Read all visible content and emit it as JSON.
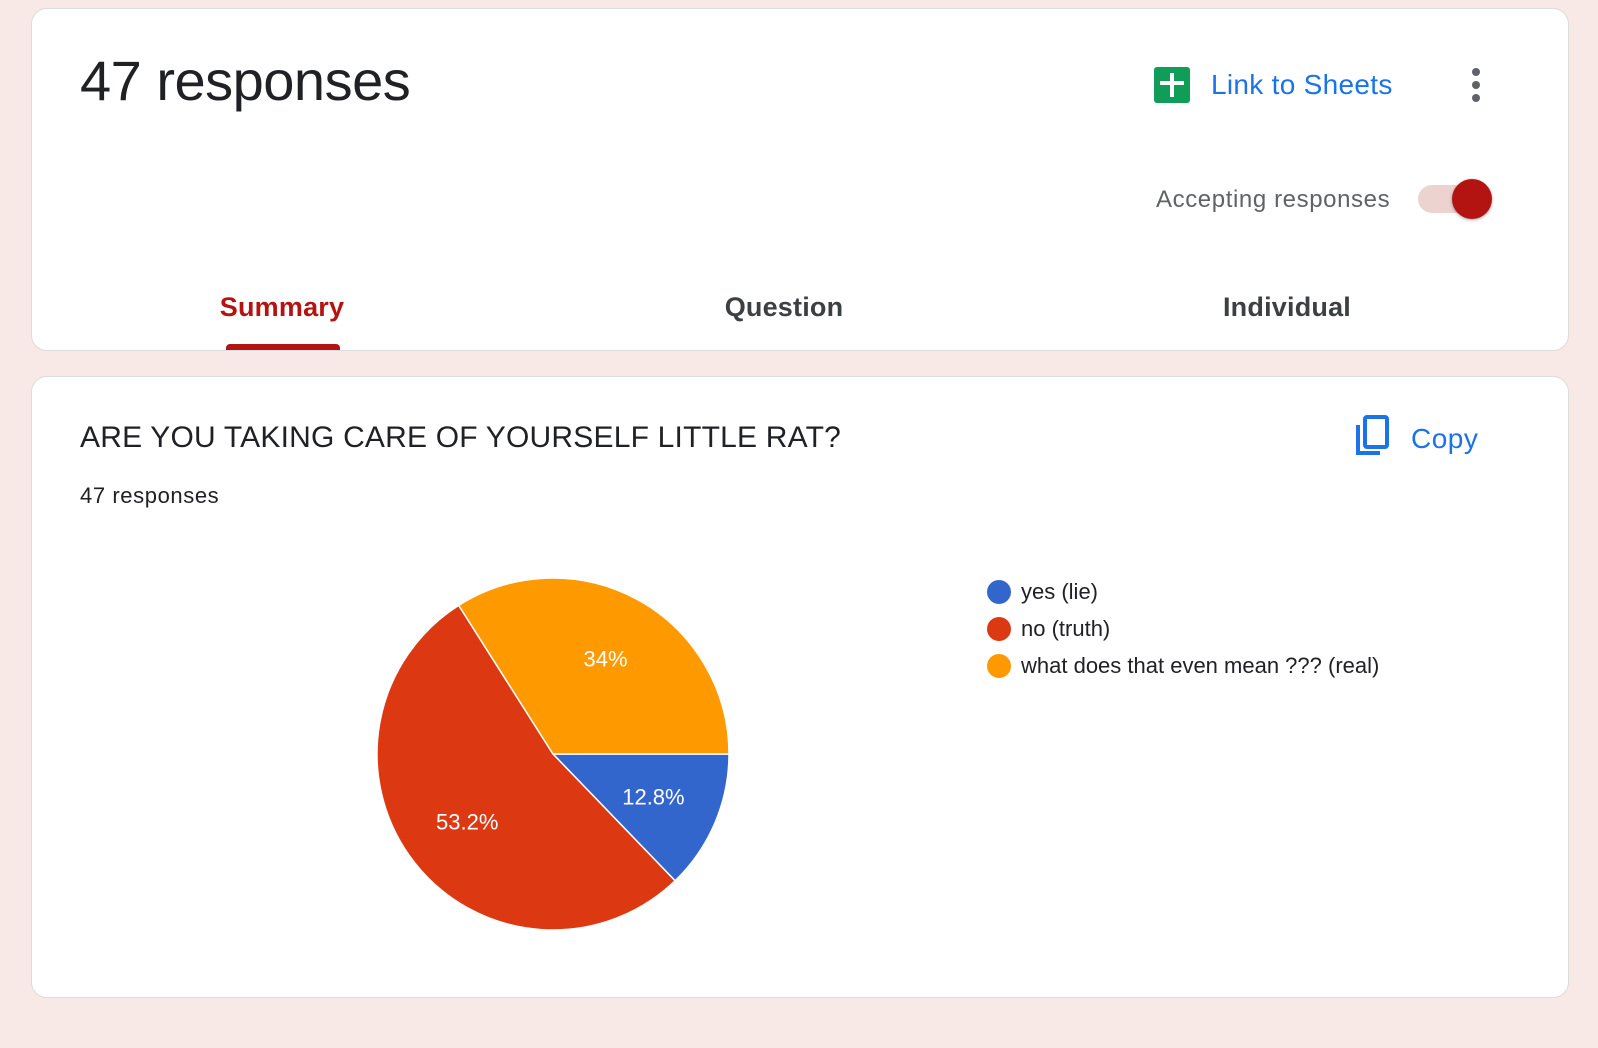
{
  "header": {
    "title": "47 responses",
    "link_to_sheets_label": "Link to Sheets",
    "more_icon": "more-vert-icon",
    "sheets_icon": "sheets-icon",
    "accepting_label": "Accepting responses",
    "accepting": true
  },
  "tabs": [
    {
      "label": "Summary",
      "active": true
    },
    {
      "label": "Question",
      "active": false
    },
    {
      "label": "Individual",
      "active": false
    }
  ],
  "question": {
    "title": "ARE YOU TAKING CARE OF YOURSELF LITTLE RAT?",
    "count_label": "47 responses",
    "copy_label": "Copy",
    "copy_icon": "copy-icon"
  },
  "colors": {
    "accent": "#b31412",
    "link": "#1a73e8",
    "toggle_track": "#ecd3cf",
    "toggle_knob": "#b31412",
    "sheets_green": "#0f9d58"
  },
  "chart_data": {
    "type": "pie",
    "title": "",
    "slices": [
      {
        "label": "yes (lie)",
        "value": 12.8,
        "display": "12.8%",
        "color": "#3366cc"
      },
      {
        "label": "no (truth)",
        "value": 53.2,
        "display": "53.2%",
        "color": "#dc3912"
      },
      {
        "label": "what does that even mean ??? (real)",
        "value": 34.0,
        "display": "34%",
        "color": "#ff9900"
      }
    ],
    "legend_position": "right"
  }
}
